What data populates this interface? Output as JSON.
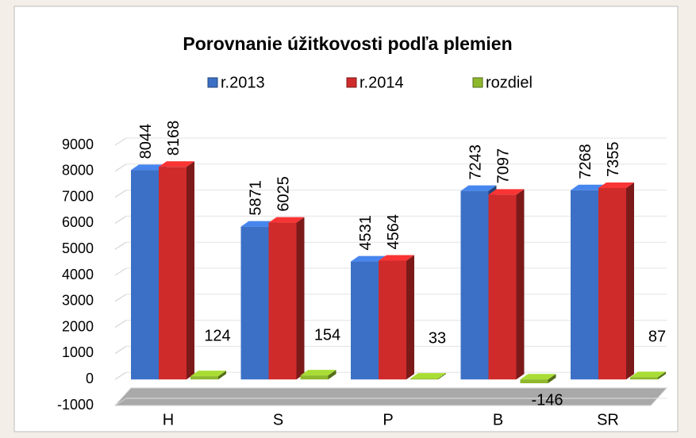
{
  "chart_data": {
    "type": "bar3d",
    "title": "Porovnanie úžitkovosti podľa plemien",
    "categories": [
      "H",
      "S",
      "P",
      "B",
      "SR"
    ],
    "series": [
      {
        "name": "r.2013",
        "color": "#3b70c6",
        "values": [
          8044,
          5871,
          4531,
          7243,
          7268
        ]
      },
      {
        "name": "r.2014",
        "color": "#cf2b2b",
        "values": [
          8168,
          6025,
          4564,
          7097,
          7355
        ]
      },
      {
        "name": "rozdiel",
        "color": "#8db82c",
        "values": [
          124,
          154,
          33,
          -146,
          87
        ]
      }
    ],
    "ylim": [
      -1000,
      9000
    ],
    "yticks": [
      -1000,
      0,
      1000,
      2000,
      3000,
      4000,
      5000,
      6000,
      7000,
      8000,
      9000
    ],
    "grid": true,
    "legend": "top"
  }
}
